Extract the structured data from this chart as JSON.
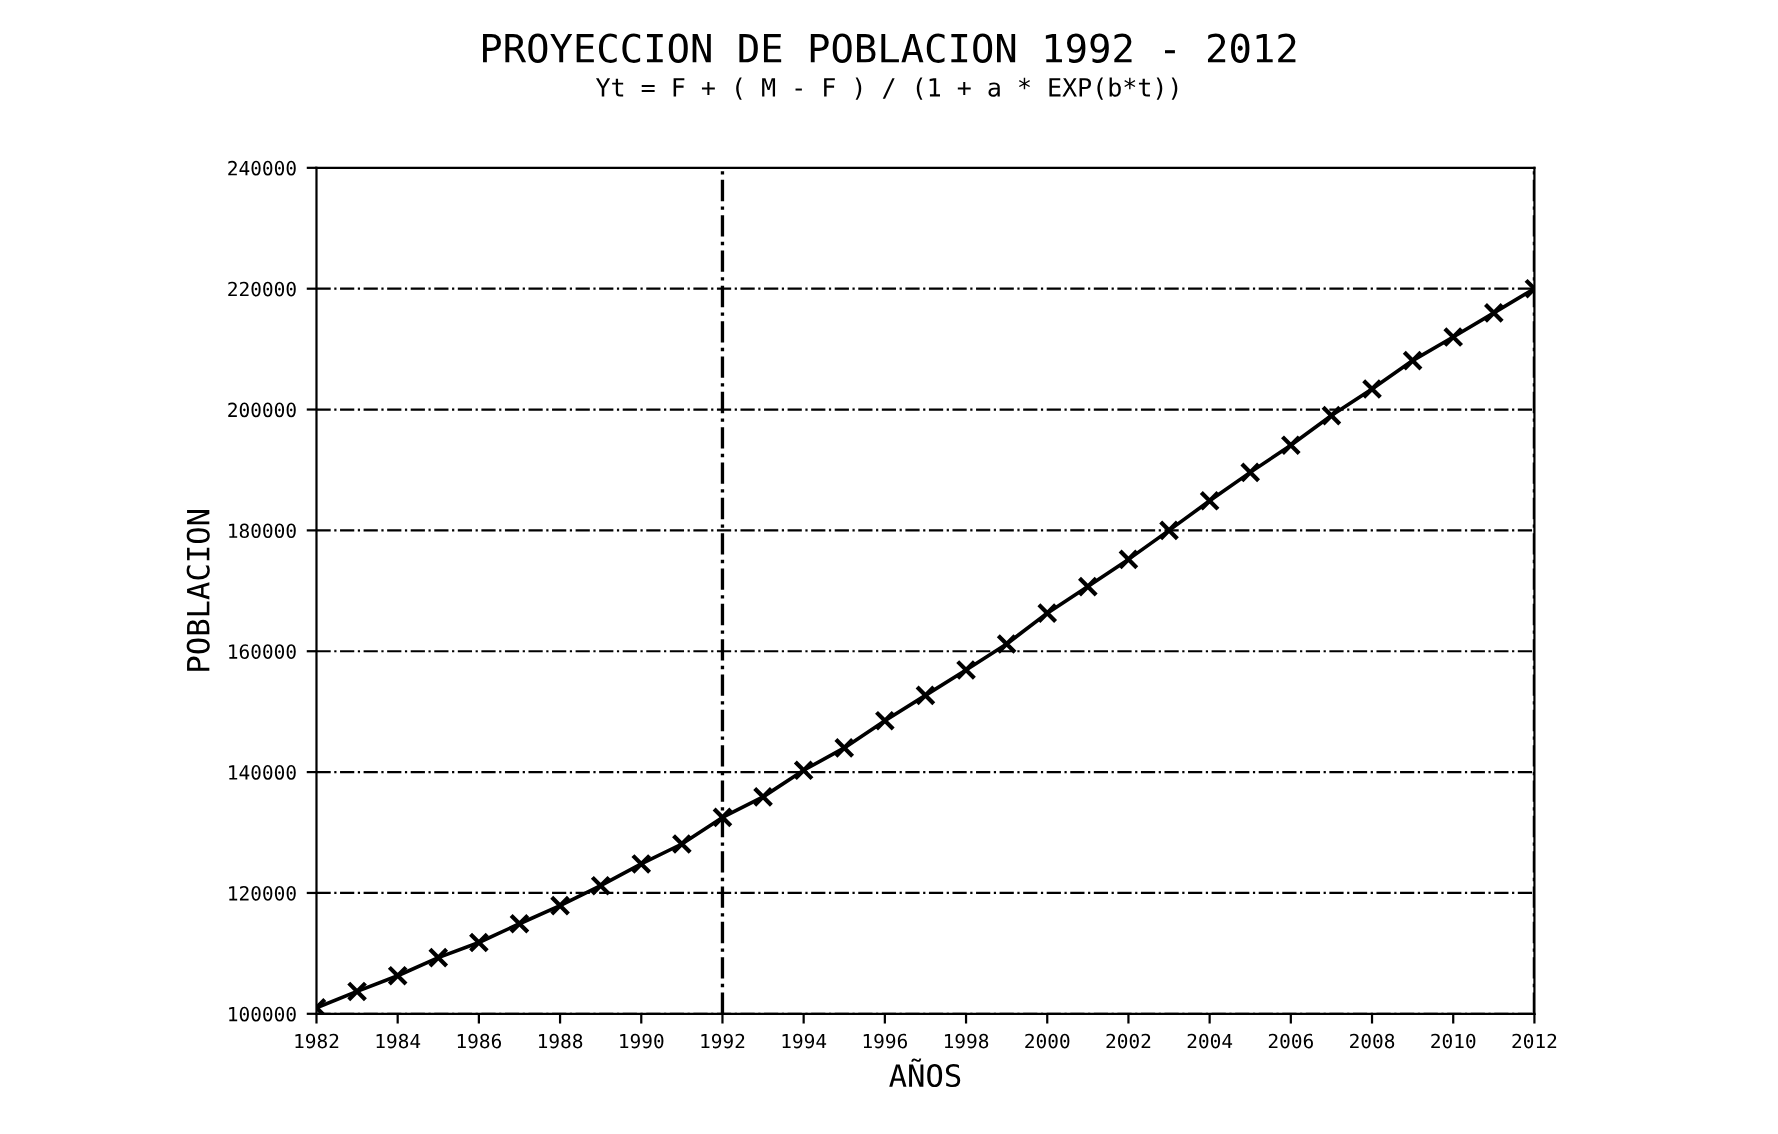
{
  "chart_data": {
    "type": "line",
    "title": "PROYECCION DE POBLACION 1992 - 2012",
    "subtitle": "Yt = F + ( M - F ) / (1 + a * EXP(b*t))",
    "xlabel": "AÑOS",
    "ylabel": "POBLACION",
    "x": [
      1982,
      1983,
      1984,
      1985,
      1986,
      1987,
      1988,
      1989,
      1990,
      1991,
      1992,
      1993,
      1994,
      1995,
      1996,
      1997,
      1998,
      1999,
      2000,
      2001,
      2002,
      2003,
      2004,
      2005,
      2006,
      2007,
      2008,
      2009,
      2010,
      2011,
      2012
    ],
    "series": [
      {
        "color": "#000000",
        "values": [
          101000,
          103700,
          106300,
          109300,
          111800,
          114900,
          117900,
          121200,
          124800,
          128100,
          132500,
          135900,
          140300,
          144000,
          148500,
          152700,
          156900,
          161200,
          166300,
          170700,
          175200,
          180000,
          184900,
          189600,
          194100,
          199000,
          203400,
          208100,
          212000,
          216000,
          220000
        ]
      }
    ],
    "xlim": [
      1982,
      2012
    ],
    "xticks": [
      1982,
      1984,
      1986,
      1988,
      1990,
      1992,
      1994,
      1996,
      1998,
      2000,
      2002,
      2004,
      2006,
      2008,
      2010,
      2012
    ],
    "ylim": [
      100000,
      240000
    ],
    "yticks": [
      100000,
      120000,
      140000,
      160000,
      180000,
      200000,
      220000,
      240000
    ],
    "ref_lines": [
      {
        "axis": "x",
        "value": 1992,
        "line_style": "dashdot",
        "color": "#000000"
      },
      {
        "axis": "x",
        "value": 2012,
        "line_style": "dashdot",
        "color": "#000000"
      }
    ],
    "grid": "y",
    "marker": "cross",
    "line_style": "solid",
    "legend": false
  }
}
